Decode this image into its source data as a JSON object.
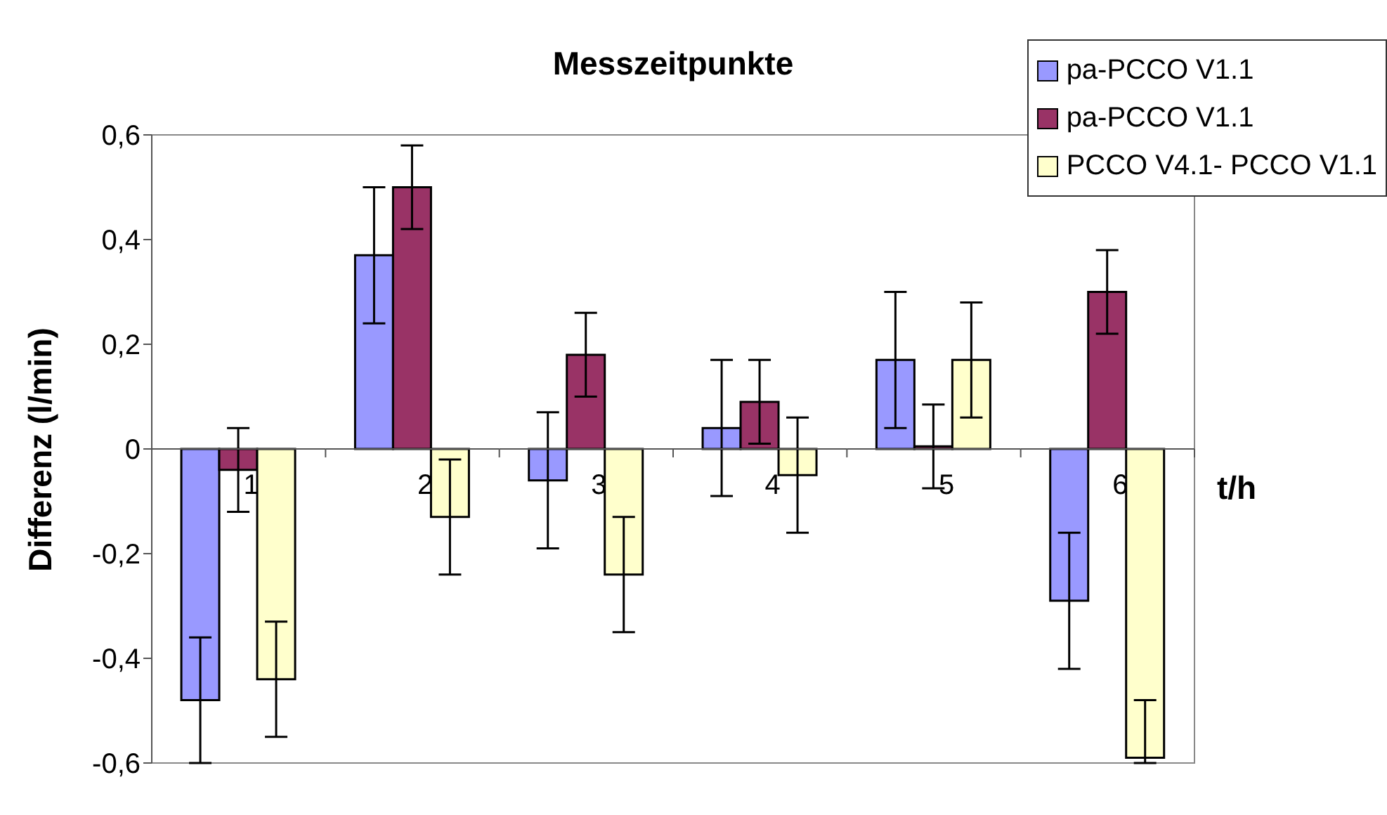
{
  "chart_data": {
    "type": "bar",
    "title": "Messzeitpunkte",
    "xlabel": "t/h",
    "ylabel": "Differenz (l/min)",
    "categories": [
      "1",
      "2",
      "3",
      "4",
      "5",
      "6"
    ],
    "series": [
      {
        "name": "pa-PCCO V1.1",
        "color": "#9999ff",
        "values": [
          -0.48,
          0.37,
          -0.06,
          0.04,
          0.17,
          -0.29
        ],
        "errors": [
          0.12,
          0.13,
          0.13,
          0.13,
          0.13,
          0.13
        ]
      },
      {
        "name": "pa-PCCO V1.1",
        "color": "#993366",
        "values": [
          -0.04,
          0.5,
          0.18,
          0.09,
          0.005,
          0.3
        ],
        "errors": [
          0.08,
          0.08,
          0.08,
          0.08,
          0.08,
          0.08
        ]
      },
      {
        "name": "PCCO V4.1- PCCO V1.1",
        "color": "#ffffcc",
        "values": [
          -0.44,
          -0.13,
          -0.24,
          -0.05,
          0.17,
          -0.59
        ],
        "errors": [
          0.11,
          0.11,
          0.11,
          0.11,
          0.11,
          [
            -0.6,
            -0.48
          ]
        ]
      }
    ],
    "ylim": [
      -0.6,
      0.6
    ],
    "yticks": [
      {
        "value": -0.6,
        "label": "-0,6"
      },
      {
        "value": -0.4,
        "label": "-0,4"
      },
      {
        "value": -0.2,
        "label": "-0,2"
      },
      0,
      {
        "value": 0.2,
        "label": "0,2"
      },
      {
        "value": 0.4,
        "label": "0,4"
      },
      {
        "value": 0.6,
        "label": "0,6"
      }
    ],
    "grid": false,
    "legend": "top right"
  }
}
